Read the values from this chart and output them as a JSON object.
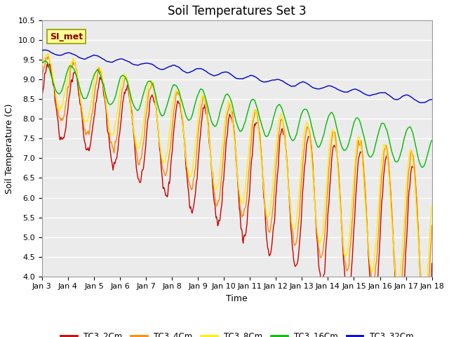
{
  "title": "Soil Temperatures Set 3",
  "xlabel": "Time",
  "ylabel": "Soil Temperature (C)",
  "ylim": [
    4.0,
    10.5
  ],
  "xlim": [
    0,
    15
  ],
  "xtick_labels": [
    "Jan 3",
    "Jan 4",
    "Jan 5",
    "Jan 6",
    "Jan 7",
    "Jan 8",
    "Jan 9",
    "Jan 10",
    "Jan 11",
    "Jan 12",
    "Jan 13",
    "Jan 14",
    "Jan 15",
    "Jan 16",
    "Jan 17",
    "Jan 18"
  ],
  "legend_labels": [
    "TC3_2Cm",
    "TC3_4Cm",
    "TC3_8Cm",
    "TC3_16Cm",
    "TC3_32Cm"
  ],
  "legend_colors": [
    "#cc0000",
    "#ff8800",
    "#ffee00",
    "#00bb00",
    "#0000cc"
  ],
  "line_colors": [
    "#cc0000",
    "#ff8800",
    "#ffee00",
    "#00bb00",
    "#0000cc"
  ],
  "annotation_text": "SI_met",
  "annotation_bg": "#ffff99",
  "annotation_border": "#999900",
  "plot_bg": "#ebebeb",
  "fig_bg": "#ffffff",
  "n_points": 720,
  "grid_color": "#ffffff",
  "title_fontsize": 12,
  "axis_fontsize": 9,
  "tick_fontsize": 8
}
